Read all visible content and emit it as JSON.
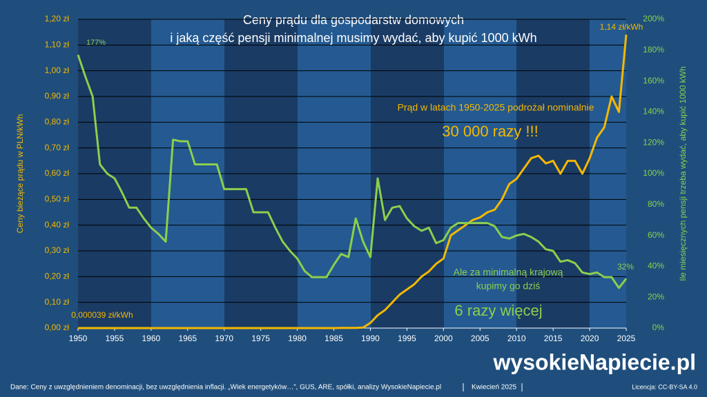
{
  "chart_data": {
    "type": "line",
    "title": [
      "Ceny prądu dla gospodarstw domowych",
      "i jaką część pensji minimalnej musimy wydać, aby kupić 1000 kWh"
    ],
    "ylabel": "Ceny bieżące prądu w PLN/kWh",
    "y2label": "Ile miesięcznych pensji trzeba wydać, aby kupić 1000 kWh",
    "x": [
      1950,
      1951,
      1952,
      1953,
      1954,
      1955,
      1956,
      1957,
      1958,
      1959,
      1960,
      1961,
      1962,
      1963,
      1964,
      1965,
      1966,
      1967,
      1968,
      1969,
      1970,
      1971,
      1972,
      1973,
      1974,
      1975,
      1976,
      1977,
      1978,
      1979,
      1980,
      1981,
      1982,
      1983,
      1984,
      1985,
      1986,
      1987,
      1988,
      1989,
      1990,
      1991,
      1992,
      1993,
      1994,
      1995,
      1996,
      1997,
      1998,
      1999,
      2000,
      2001,
      2002,
      2003,
      2004,
      2005,
      2006,
      2007,
      2008,
      2009,
      2010,
      2011,
      2012,
      2013,
      2014,
      2015,
      2016,
      2017,
      2018,
      2019,
      2020,
      2021,
      2022,
      2023,
      2024,
      2025
    ],
    "xlim": [
      1950,
      2025
    ],
    "xticks": [
      1950,
      1955,
      1960,
      1965,
      1970,
      1975,
      1980,
      1985,
      1990,
      1995,
      2000,
      2005,
      2010,
      2015,
      2020,
      2025
    ],
    "ylim": [
      0,
      1.2
    ],
    "yticks": [
      {
        "value": 0,
        "label": "0,00 zł"
      },
      {
        "value": 0.1,
        "label": "0,10 zł"
      },
      {
        "value": 0.2,
        "label": "0,20 zł"
      },
      {
        "value": 0.3,
        "label": "0,30 zł"
      },
      {
        "value": 0.4,
        "label": "0,40 zł"
      },
      {
        "value": 0.5,
        "label": "0,50 zł"
      },
      {
        "value": 0.6,
        "label": "0,60 zł"
      },
      {
        "value": 0.7,
        "label": "0,70 zł"
      },
      {
        "value": 0.8,
        "label": "0,80 zł"
      },
      {
        "value": 0.9,
        "label": "0,90 zł"
      },
      {
        "value": 1.0,
        "label": "1,00 zł"
      },
      {
        "value": 1.1,
        "label": "1,10 zł"
      },
      {
        "value": 1.2,
        "label": "1,20 zł"
      }
    ],
    "y2lim": [
      0,
      200
    ],
    "y2ticks": [
      {
        "value": 0,
        "label": "0%"
      },
      {
        "value": 20,
        "label": "20%"
      },
      {
        "value": 40,
        "label": "40%"
      },
      {
        "value": 60,
        "label": "60%"
      },
      {
        "value": 80,
        "label": "80%"
      },
      {
        "value": 100,
        "label": "100%"
      },
      {
        "value": 120,
        "label": "120%"
      },
      {
        "value": 140,
        "label": "140%"
      },
      {
        "value": 160,
        "label": "160%"
      },
      {
        "value": 180,
        "label": "180%"
      },
      {
        "value": 200,
        "label": "200%"
      }
    ],
    "grid": true,
    "series": [
      {
        "name": "Cena prądu",
        "color": "#f5b800",
        "axis": "y",
        "values": [
          3.9e-05,
          5e-05,
          5e-05,
          5e-05,
          5e-05,
          5e-05,
          5e-05,
          5e-05,
          5e-05,
          5e-05,
          5e-05,
          5e-05,
          5e-05,
          5e-05,
          5e-05,
          5e-05,
          5e-05,
          5e-05,
          5e-05,
          5e-05,
          5e-05,
          5e-05,
          5e-05,
          5e-05,
          5e-05,
          5e-05,
          5e-05,
          5e-05,
          5e-05,
          5e-05,
          5e-05,
          0.0001,
          0.0001,
          0.0001,
          0.0001,
          0.0001,
          0.0005,
          0.0005,
          0.0005,
          0.002,
          0.02,
          0.05,
          0.07,
          0.1,
          0.13,
          0.15,
          0.17,
          0.2,
          0.22,
          0.25,
          0.27,
          0.36,
          0.38,
          0.4,
          0.42,
          0.43,
          0.45,
          0.46,
          0.5,
          0.56,
          0.58,
          0.62,
          0.66,
          0.67,
          0.64,
          0.65,
          0.6,
          0.65,
          0.65,
          0.6,
          0.66,
          0.74,
          0.78,
          0.9,
          0.84,
          1.14
        ]
      },
      {
        "name": "Udział pensji minimalnej",
        "color": "#8ccf4d",
        "axis": "y2",
        "values": [
          177,
          163,
          150,
          106,
          100,
          97,
          88,
          78,
          78,
          71,
          65,
          61,
          56,
          122,
          121,
          121,
          106,
          106,
          106,
          106,
          90,
          90,
          90,
          90,
          75,
          75,
          75,
          65,
          56,
          50,
          45,
          37,
          33,
          33,
          33,
          41,
          48,
          46,
          71,
          56,
          46,
          97,
          70,
          78,
          79,
          71,
          66,
          63,
          65,
          55,
          57,
          65,
          68,
          68,
          68,
          68,
          68,
          66,
          59,
          58,
          60,
          61,
          59,
          56,
          51,
          50,
          43,
          44,
          42,
          36,
          35,
          36,
          33,
          33,
          26,
          32
        ]
      }
    ],
    "annotations": [
      "177%",
      "1,14 zł/kWh",
      "32%",
      "0,000039 zł/kWh",
      "Prąd w latach 1950-2025 podrożał nominalnie",
      "30 000 razy !!!",
      "Ale za minimalną krajową",
      "kupimy go dziś",
      "6 razy więcej"
    ]
  },
  "footer": {
    "source": "Dane: Ceny z uwzględnieniem denominacji, bez uwzględnienia inflacji. „Wiek energetyków…”, GUS, ARE, spółki, analizy WysokieNapiecie.pl",
    "date": "Kwiecień 2025",
    "license": "Licencja: CC-BY-SA 4.0",
    "logo": "wysokieNapiecie.pl"
  }
}
